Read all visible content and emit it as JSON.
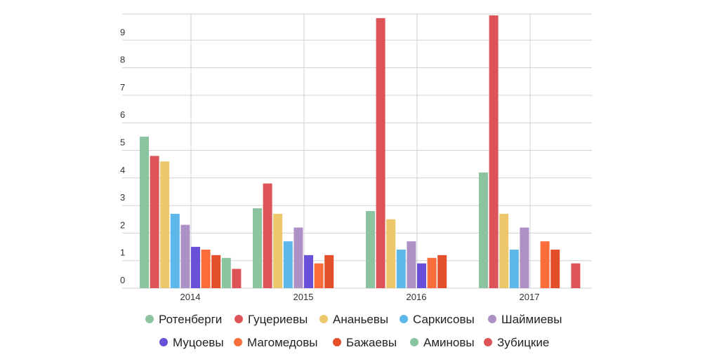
{
  "chart_data": {
    "type": "bar",
    "categories": [
      "2014",
      "2015",
      "2016",
      "2017"
    ],
    "ylim": [
      0,
      10
    ],
    "yticks": [
      0,
      1,
      2,
      3,
      4,
      5,
      6,
      7,
      8,
      9
    ],
    "grid": true,
    "legend_position": "bottom",
    "series": [
      {
        "name": "Ротенберги",
        "color": "#8cc4a0",
        "values": [
          5.5,
          2.9,
          2.8,
          4.2
        ]
      },
      {
        "name": "Гуцериевы",
        "color": "#dc5457",
        "values": [
          4.8,
          3.8,
          9.8,
          9.9
        ]
      },
      {
        "name": "Ананьевы",
        "color": "#edc86b",
        "values": [
          4.6,
          2.7,
          2.5,
          2.7
        ]
      },
      {
        "name": "Саркисовы",
        "color": "#5db7e9",
        "values": [
          2.7,
          1.7,
          1.4,
          1.4
        ]
      },
      {
        "name": "Шаймиевы",
        "color": "#ad91c6",
        "values": [
          2.3,
          2.2,
          1.7,
          2.2
        ]
      },
      {
        "name": "Муцоевы",
        "color": "#6a4fd8",
        "values": [
          1.5,
          1.2,
          0.9,
          null
        ]
      },
      {
        "name": "Магомедовы",
        "color": "#fb6d3a",
        "values": [
          1.4,
          0.9,
          1.1,
          1.7
        ]
      },
      {
        "name": "Бажаевы",
        "color": "#e34f2a",
        "values": [
          1.2,
          1.2,
          1.2,
          1.4
        ]
      },
      {
        "name": "Аминовы",
        "color": "#8cc4a0",
        "values": [
          1.1,
          null,
          null,
          null
        ]
      },
      {
        "name": "Зубицкие",
        "color": "#dc5457",
        "values": [
          0.7,
          null,
          null,
          0.9
        ]
      }
    ]
  }
}
